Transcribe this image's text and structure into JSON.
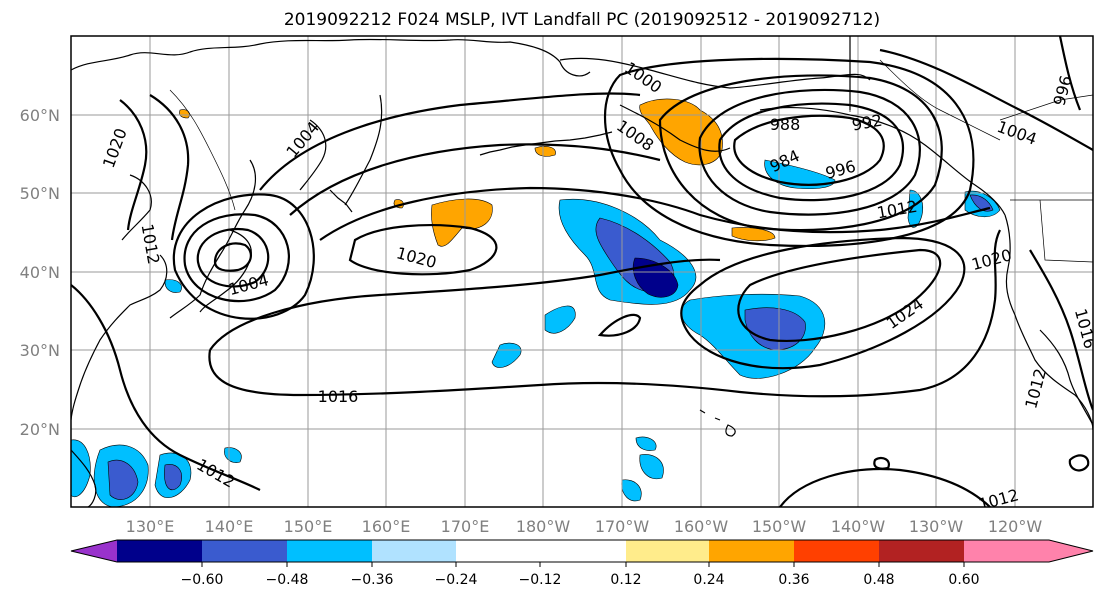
{
  "title": "2019092212 F024 MSLP, IVT Landfall PC (2019092512 - 2019092712)",
  "lat_labels": [
    "60°N",
    "50°N",
    "40°N",
    "30°N",
    "20°N"
  ],
  "lon_labels": [
    "130°E",
    "140°E",
    "150°E",
    "160°E",
    "170°E",
    "180°W",
    "170°W",
    "160°W",
    "150°W",
    "140°W",
    "130°W",
    "120°W"
  ],
  "mslp_labels": [
    "1020",
    "1004",
    "1000",
    "1008",
    "988",
    "992",
    "984",
    "996",
    "1004",
    "1012",
    "1020",
    "1020",
    "1004",
    "1016",
    "1012",
    "1024",
    "1012",
    "1012",
    "1012",
    "996",
    "1016"
  ],
  "colorbar": {
    "ticks": [
      "−0.60",
      "−0.48",
      "−0.36",
      "−0.24",
      "−0.12",
      "0.12",
      "0.24",
      "0.36",
      "0.48",
      "0.60"
    ],
    "colors": {
      "under": "#9932cc",
      "b1": "#00008b",
      "b2": "#3a5bcf",
      "b3": "#00bfff",
      "b4": "#b0e2ff",
      "b5": "#ffffff",
      "b6": "#ffec8b",
      "b7": "#ffa500",
      "b8": "#ff4000",
      "b9": "#b22222",
      "over": "#ff82ab"
    }
  }
}
